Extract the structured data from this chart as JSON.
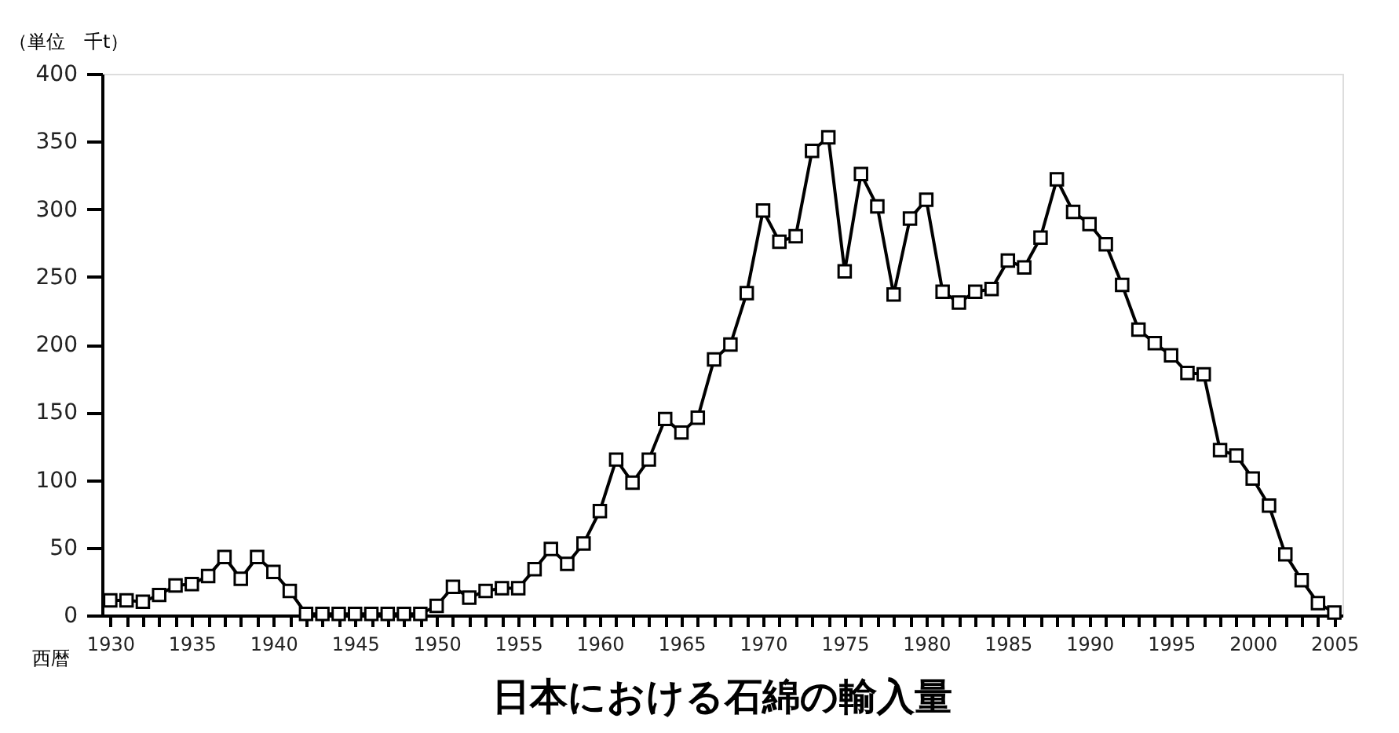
{
  "chart_data": {
    "type": "line",
    "title": "日本における石綿の輸入量",
    "ylabel": "（単位　千t）",
    "xlabel": "西暦",
    "x": [
      1930,
      1931,
      1932,
      1933,
      1934,
      1935,
      1936,
      1937,
      1938,
      1939,
      1940,
      1941,
      1942,
      1943,
      1944,
      1945,
      1946,
      1947,
      1948,
      1949,
      1950,
      1951,
      1952,
      1953,
      1954,
      1955,
      1956,
      1957,
      1958,
      1959,
      1960,
      1961,
      1962,
      1963,
      1964,
      1965,
      1966,
      1967,
      1968,
      1969,
      1970,
      1971,
      1972,
      1973,
      1974,
      1975,
      1976,
      1977,
      1978,
      1979,
      1980,
      1981,
      1982,
      1983,
      1984,
      1985,
      1986,
      1987,
      1988,
      1989,
      1990,
      1991,
      1992,
      1993,
      1994,
      1995,
      1996,
      1997,
      1998,
      1999,
      2000,
      2001,
      2002,
      2003,
      2004,
      2005
    ],
    "series": [
      {
        "color": "#000000",
        "values": [
          11,
          11,
          10,
          15,
          22,
          23,
          29,
          43,
          27,
          43,
          32,
          18,
          1,
          1,
          1,
          1,
          1,
          1,
          1,
          1,
          7,
          21,
          13,
          18,
          20,
          20,
          34,
          49,
          38,
          53,
          77,
          115,
          98,
          115,
          145,
          135,
          146,
          189,
          200,
          238,
          299,
          276,
          280,
          343,
          353,
          254,
          326,
          302,
          237,
          293,
          307,
          239,
          231,
          239,
          241,
          262,
          257,
          279,
          322,
          298,
          289,
          274,
          244,
          211,
          201,
          192,
          179,
          178,
          122,
          118,
          101,
          81,
          45,
          26,
          9,
          2
        ]
      }
    ],
    "xlim": [
      1929.5,
      2005.5
    ],
    "ylim": [
      0,
      400
    ],
    "yticks": [
      0,
      50,
      100,
      150,
      200,
      250,
      300,
      350,
      400
    ],
    "xticks": [
      1930,
      {
        "value": 1931,
        "label": null
      },
      {
        "value": 1932,
        "label": null
      },
      {
        "value": 1933,
        "label": null
      },
      {
        "value": 1934,
        "label": null
      },
      1935,
      {
        "value": 1936,
        "label": null
      },
      {
        "value": 1937,
        "label": null
      },
      {
        "value": 1938,
        "label": null
      },
      {
        "value": 1939,
        "label": null
      },
      1940,
      {
        "value": 1941,
        "label": null
      },
      {
        "value": 1942,
        "label": null
      },
      {
        "value": 1943,
        "label": null
      },
      {
        "value": 1944,
        "label": null
      },
      1945,
      {
        "value": 1946,
        "label": null
      },
      {
        "value": 1947,
        "label": null
      },
      {
        "value": 1948,
        "label": null
      },
      {
        "value": 1949,
        "label": null
      },
      1950,
      {
        "value": 1951,
        "label": null
      },
      {
        "value": 1952,
        "label": null
      },
      {
        "value": 1953,
        "label": null
      },
      {
        "value": 1954,
        "label": null
      },
      1955,
      {
        "value": 1956,
        "label": null
      },
      {
        "value": 1957,
        "label": null
      },
      {
        "value": 1958,
        "label": null
      },
      {
        "value": 1959,
        "label": null
      },
      1960,
      {
        "value": 1961,
        "label": null
      },
      {
        "value": 1962,
        "label": null
      },
      {
        "value": 1963,
        "label": null
      },
      {
        "value": 1964,
        "label": null
      },
      1965,
      {
        "value": 1966,
        "label": null
      },
      {
        "value": 1967,
        "label": null
      },
      {
        "value": 1968,
        "label": null
      },
      {
        "value": 1969,
        "label": null
      },
      1970,
      {
        "value": 1971,
        "label": null
      },
      {
        "value": 1972,
        "label": null
      },
      {
        "value": 1973,
        "label": null
      },
      {
        "value": 1974,
        "label": null
      },
      1975,
      {
        "value": 1976,
        "label": null
      },
      {
        "value": 1977,
        "label": null
      },
      {
        "value": 1978,
        "label": null
      },
      {
        "value": 1979,
        "label": null
      },
      1980,
      {
        "value": 1981,
        "label": null
      },
      {
        "value": 1982,
        "label": null
      },
      {
        "value": 1983,
        "label": null
      },
      {
        "value": 1984,
        "label": null
      },
      1985,
      {
        "value": 1986,
        "label": null
      },
      {
        "value": 1987,
        "label": null
      },
      {
        "value": 1988,
        "label": null
      },
      {
        "value": 1989,
        "label": null
      },
      1990,
      {
        "value": 1991,
        "label": null
      },
      {
        "value": 1992,
        "label": null
      },
      {
        "value": 1993,
        "label": null
      },
      {
        "value": 1994,
        "label": null
      },
      1995,
      {
        "value": 1996,
        "label": null
      },
      {
        "value": 1997,
        "label": null
      },
      {
        "value": 1998,
        "label": null
      },
      {
        "value": 1999,
        "label": null
      },
      2000,
      {
        "value": 2001,
        "label": null
      },
      {
        "value": 2002,
        "label": null
      },
      {
        "value": 2003,
        "label": null
      },
      {
        "value": 2004,
        "label": null
      },
      2005
    ],
    "marker": "square",
    "grid": false
  }
}
